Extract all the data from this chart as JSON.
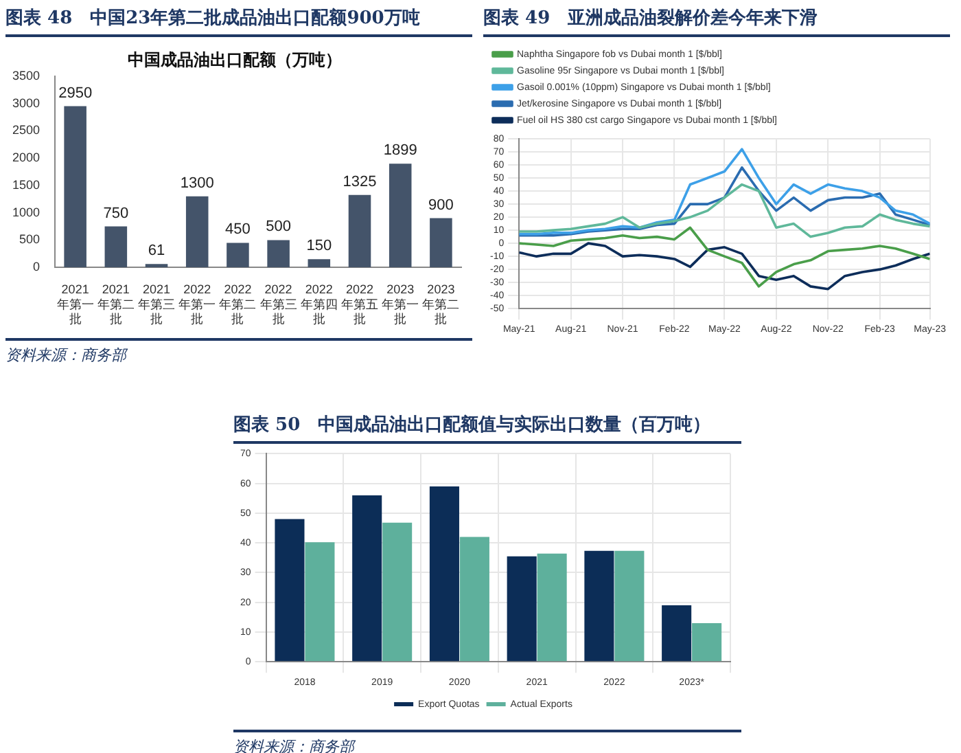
{
  "chart_data": [
    {
      "type": "bar",
      "title": "图表 48　中国23年第二批成品油出口配额900万吨",
      "subtitle": "中国成品油出口配额（万吨）",
      "categories": [
        "2021年第一批",
        "2021年第二批",
        "2021年第三批",
        "2022年第一批",
        "2022年第二批",
        "2022年第三批",
        "2022年第四批",
        "2022年第五批",
        "2023年第一批",
        "2023年第二批"
      ],
      "values": [
        2950,
        750,
        61,
        1300,
        450,
        500,
        150,
        1325,
        1899,
        900
      ],
      "color": "#44546a",
      "ylim": [
        0,
        3500
      ],
      "yticks": [
        0,
        500,
        1000,
        1500,
        2000,
        2500,
        3000,
        3500
      ],
      "data_labels": true,
      "annotations": [
        "资料来源：商务部"
      ]
    },
    {
      "type": "line",
      "title": "图表 49　亚洲成品油裂解价差今年来下滑",
      "x": [
        "2021-05",
        "2021-06",
        "2021-07",
        "2021-08",
        "2021-09",
        "2021-10",
        "2021-11",
        "2021-12",
        "2022-01",
        "2022-02",
        "2022-03",
        "2022-04",
        "2022-05",
        "2022-06",
        "2022-07",
        "2022-08",
        "2022-09",
        "2022-10",
        "2022-11",
        "2022-12",
        "2023-01",
        "2023-02",
        "2023-03",
        "2023-04",
        "2023-05"
      ],
      "xlim": [
        "2021-05",
        "2023-05"
      ],
      "xticks": [
        {
          "value": "2021-05",
          "label": "May-21"
        },
        {
          "value": "2021-08",
          "label": "Aug-21"
        },
        {
          "value": "2021-11",
          "label": "Nov-21"
        },
        {
          "value": "2022-02",
          "label": "Feb-22"
        },
        {
          "value": "2022-05",
          "label": "May-22"
        },
        {
          "value": "2022-08",
          "label": "Aug-22"
        },
        {
          "value": "2022-11",
          "label": "Nov-22"
        },
        {
          "value": "2023-02",
          "label": "Feb-23"
        },
        {
          "value": "2023-05",
          "label": "May-23"
        }
      ],
      "ylim": [
        -50,
        80
      ],
      "yticks": [
        -50,
        -40,
        -30,
        -20,
        -10,
        0,
        10,
        20,
        30,
        40,
        50,
        60,
        70,
        80
      ],
      "grid": true,
      "legend": "top left",
      "series": [
        {
          "name": "Naphtha Singapore fob vs Dubai month 1 [$/bbl]",
          "color": "#4a9e4a",
          "values": [
            0,
            -1,
            -2,
            2,
            3,
            4,
            6,
            4,
            5,
            3,
            12,
            -5,
            -10,
            -15,
            -33,
            -22,
            -16,
            -13,
            -6,
            -5,
            -4,
            -2,
            -4,
            -8,
            -12
          ]
        },
        {
          "name": "Gasoline 95r Singapore vs Dubai month 1 [$/bbl]",
          "color": "#5fb89a",
          "values": [
            9,
            9,
            10,
            11,
            13,
            15,
            20,
            12,
            15,
            17,
            20,
            25,
            35,
            45,
            40,
            12,
            15,
            5,
            8,
            12,
            13,
            22,
            18,
            15,
            13
          ]
        },
        {
          "name": "Gasoil 0.001% (10ppm) Singapore vs Dubai month 1 [$/bbl]",
          "color": "#3da0e8",
          "values": [
            7,
            7,
            8,
            8,
            10,
            11,
            13,
            12,
            16,
            18,
            45,
            50,
            55,
            72,
            50,
            30,
            45,
            38,
            45,
            42,
            40,
            35,
            25,
            22,
            15
          ]
        },
        {
          "name": "Jet/kerosine Singapore vs Dubai month 1 [$/bbl]",
          "color": "#2b6cb0",
          "values": [
            6,
            6,
            6,
            7,
            9,
            10,
            11,
            11,
            14,
            15,
            30,
            30,
            35,
            58,
            40,
            25,
            35,
            25,
            33,
            35,
            35,
            38,
            22,
            18,
            14
          ]
        },
        {
          "name": "Fuel oil HS 380 cst cargo Singapore vs Dubai month 1 [$/bbl]",
          "color": "#0d2d5a",
          "values": [
            -7,
            -10,
            -8,
            -8,
            0,
            -2,
            -10,
            -9,
            -10,
            -12,
            -18,
            -5,
            -3,
            -8,
            -25,
            -28,
            -25,
            -33,
            -35,
            -25,
            -22,
            -20,
            -17,
            -12,
            -8
          ]
        }
      ]
    },
    {
      "type": "bar",
      "title": "图表 50　中国成品油出口配额值与实际出口数量（百万吨）",
      "categories": [
        "2018",
        "2019",
        "2020",
        "2021",
        "2022",
        "2023*"
      ],
      "ylim": [
        0,
        70
      ],
      "yticks": [
        0,
        10,
        20,
        30,
        40,
        50,
        60,
        70
      ],
      "grid": true,
      "legend": "bottom",
      "annotations": [
        "资料来源：商务部"
      ],
      "series": [
        {
          "name": "Export Quotas",
          "color": "#0c2d57",
          "values": [
            48,
            56,
            59,
            35.5,
            37.3,
            19
          ]
        },
        {
          "name": "Actual Exports",
          "color": "#5eb09c",
          "values": [
            40.2,
            46.8,
            42,
            36.4,
            37.3,
            13
          ]
        }
      ]
    }
  ]
}
